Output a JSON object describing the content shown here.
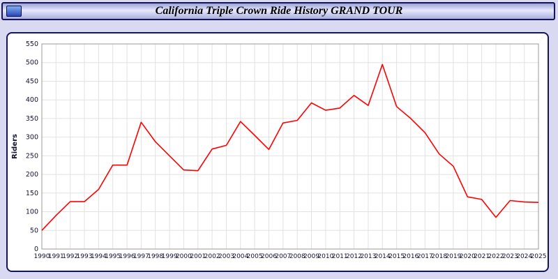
{
  "window": {
    "title": "California Triple Crown Ride History GRAND TOUR",
    "icon": "chart-icon"
  },
  "chart_data": {
    "type": "line",
    "title": "California Triple Crown Ride History GRAND TOUR",
    "xlabel": "",
    "ylabel": "Riders",
    "ylim": [
      0,
      550
    ],
    "ytick_step": 50,
    "grid": true,
    "legend": "none",
    "x": [
      1990,
      1991,
      1992,
      1993,
      1994,
      1995,
      1996,
      1997,
      1998,
      1999,
      2000,
      2001,
      2002,
      2003,
      2004,
      2005,
      2006,
      2007,
      2008,
      2009,
      2010,
      2011,
      2012,
      2013,
      2014,
      2015,
      2016,
      2017,
      2018,
      2019,
      2020,
      2021,
      2022,
      2023,
      2024,
      2025
    ],
    "series": [
      {
        "name": "Riders",
        "color": "#ff0000",
        "values": [
          50,
          90,
          127,
          127,
          160,
          225,
          225,
          340,
          288,
          250,
          212,
          210,
          268,
          278,
          342,
          305,
          267,
          338,
          345,
          392,
          372,
          378,
          412,
          385,
          495,
          382,
          350,
          312,
          255,
          222,
          140,
          133,
          85,
          130,
          126,
          125
        ]
      }
    ],
    "grid_color": "#e2e2e2",
    "plot_border_color": "#999999",
    "tick_label_color": "#111133"
  }
}
